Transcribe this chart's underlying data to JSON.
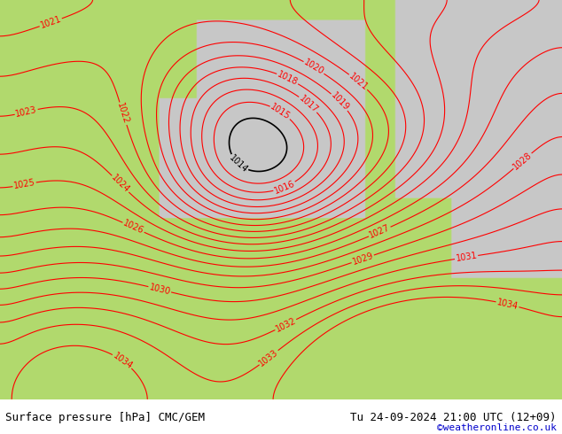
{
  "title_left": "Surface pressure [hPa] CMC/GEM",
  "title_right": "Tu 24-09-2024 21:00 UTC (12+09)",
  "credit": "©weatheronline.co.uk",
  "bg_color": "#b2d96e",
  "land_color": "#b2d96e",
  "sea_color": "#c8c8c8",
  "contour_color_red": "#ff0000",
  "contour_color_blue": "#0000ff",
  "contour_color_black": "#000000",
  "bottom_bar_color": "#ffffff",
  "bottom_bar_height": 0.08,
  "figsize": [
    6.34,
    4.9
  ],
  "dpi": 100,
  "title_fontsize": 9,
  "credit_fontsize": 8,
  "credit_color": "#0000cc",
  "label_fontsize": 7
}
